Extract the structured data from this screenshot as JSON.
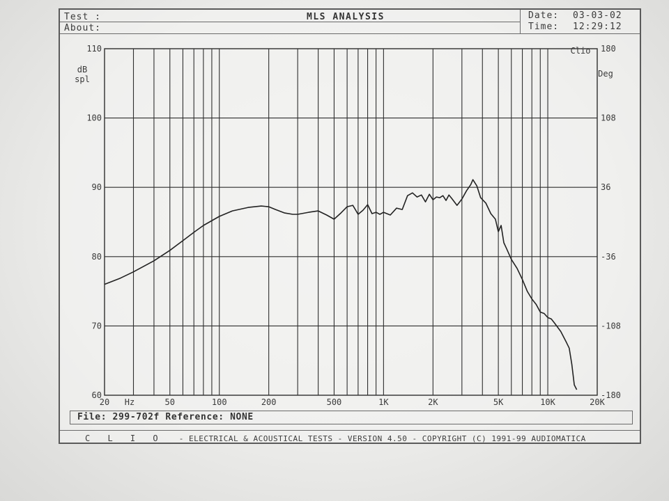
{
  "header": {
    "test_label": "Test :",
    "about_label": "About:",
    "title": "MLS ANALYSIS",
    "date_label": "Date:",
    "date_value": "03-03-02",
    "time_label": "Time:",
    "time_value": "12:29:12"
  },
  "file_line": "File: 299-702f Reference: NONE",
  "footer": {
    "brand": "C L I O",
    "text": "-  ELECTRICAL & ACOUSTICAL TESTS  -  VERSION 4.50  -  COPYRIGHT (C) 1991-99 AUDIOMATICA"
  },
  "colors": {
    "trace": "#222222",
    "grid": "#2e2e2e",
    "paper": "#f1f1ef"
  },
  "chart_data": {
    "type": "line",
    "title": "MLS ANALYSIS",
    "xlabel": "Hz",
    "ylabel": "dB spl",
    "y2label": "Deg",
    "corner_label": "Clio",
    "x_scale": "log",
    "xlim": [
      20,
      20000
    ],
    "ylim": [
      60,
      110
    ],
    "y2lim": [
      -180,
      180
    ],
    "grid": true,
    "x_ticks": [
      {
        "value": 20,
        "label": "20"
      },
      {
        "value": 50,
        "label": "50"
      },
      {
        "value": 100,
        "label": "100"
      },
      {
        "value": 200,
        "label": "200"
      },
      {
        "value": 500,
        "label": "500"
      },
      {
        "value": 1000,
        "label": "1K"
      },
      {
        "value": 2000,
        "label": "2K"
      },
      {
        "value": 5000,
        "label": "5K"
      },
      {
        "value": 10000,
        "label": "10K"
      },
      {
        "value": 20000,
        "label": "20K"
      }
    ],
    "y_ticks": [
      60,
      70,
      80,
      90,
      100,
      110
    ],
    "y2_ticks": [
      -180,
      -108,
      -36,
      36,
      108,
      180
    ],
    "series": [
      {
        "x": [
          20,
          25,
          30,
          40,
          50,
          60,
          70,
          80,
          100,
          120,
          150,
          180,
          200,
          220,
          250,
          280,
          300,
          350,
          400,
          450,
          500,
          550,
          600,
          650,
          700,
          750,
          800,
          850,
          900,
          950,
          1000,
          1100,
          1200,
          1300,
          1400,
          1500,
          1600,
          1700,
          1800,
          1900,
          2000,
          2100,
          2200,
          2300,
          2400,
          2500,
          2600,
          2800,
          3000,
          3200,
          3400,
          3500,
          3700,
          3900,
          4200,
          4500,
          4800,
          5000,
          5200,
          5400,
          5600,
          6000,
          6500,
          7000,
          7500,
          8000,
          8500,
          9000,
          9500,
          10000,
          10500,
          11000,
          12000,
          13000,
          13500,
          14000,
          14500,
          15000
        ],
        "values": [
          76.0,
          76.9,
          77.8,
          79.4,
          80.9,
          82.3,
          83.5,
          84.5,
          85.8,
          86.6,
          87.1,
          87.3,
          87.2,
          86.8,
          86.3,
          86.1,
          86.1,
          86.4,
          86.6,
          86.0,
          85.4,
          86.3,
          87.2,
          87.4,
          86.1,
          86.7,
          87.5,
          86.2,
          86.4,
          86.1,
          86.4,
          86.0,
          87.0,
          86.8,
          88.8,
          89.2,
          88.6,
          88.9,
          87.9,
          89.0,
          88.2,
          88.6,
          88.5,
          88.8,
          88.1,
          88.9,
          88.4,
          87.4,
          88.3,
          89.5,
          90.4,
          91.1,
          90.2,
          88.5,
          87.7,
          86.2,
          85.4,
          83.6,
          84.5,
          82.0,
          81.2,
          79.6,
          78.3,
          76.7,
          75.0,
          73.9,
          73.1,
          72.0,
          71.8,
          71.2,
          71.0,
          70.4,
          69.2,
          67.6,
          66.8,
          64.5,
          61.5,
          60.8
        ]
      }
    ]
  }
}
